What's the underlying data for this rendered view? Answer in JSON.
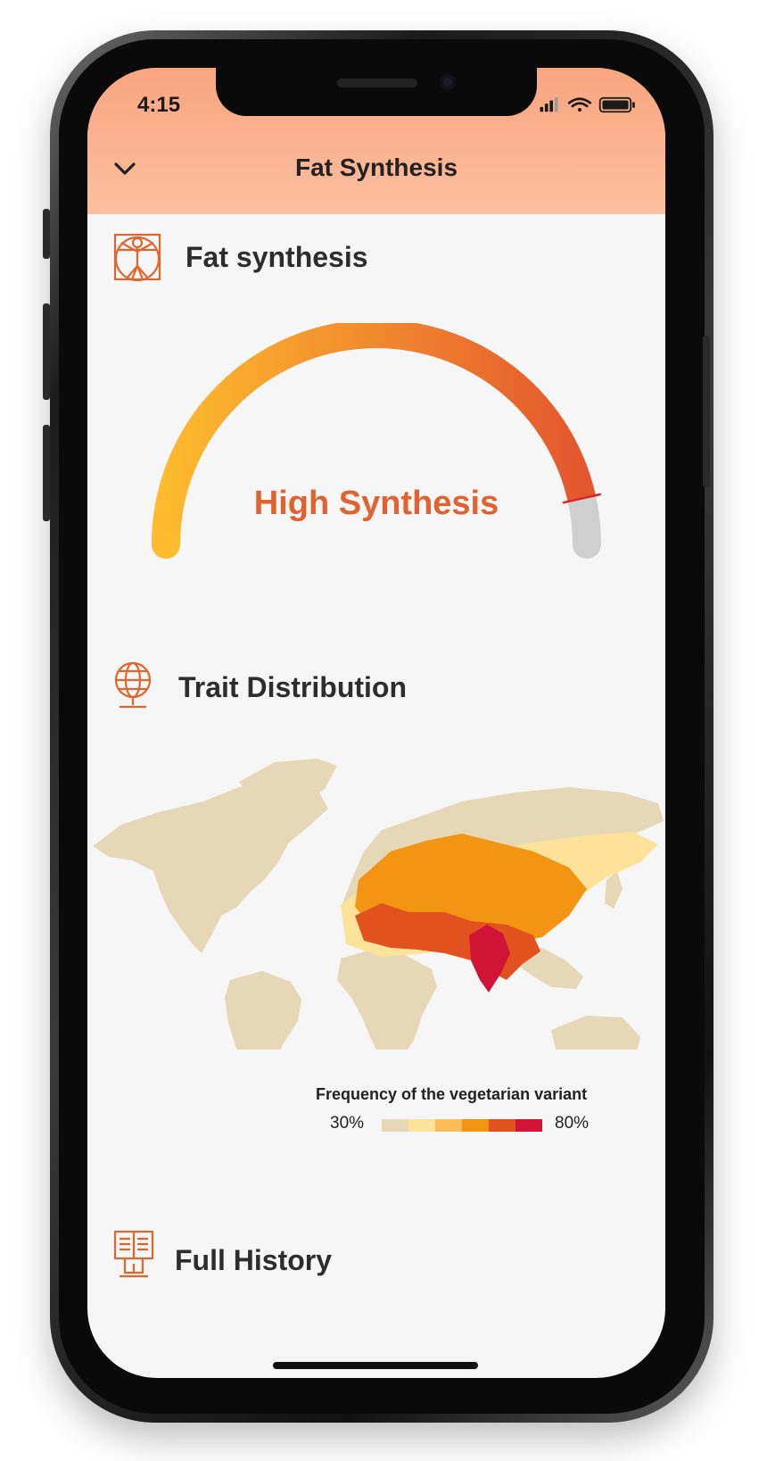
{
  "status_bar": {
    "time": "4:15"
  },
  "header": {
    "title": "Fat Synthesis",
    "back_icon": "chevron-down-icon"
  },
  "sections": {
    "synthesis": {
      "title": "Fat synthesis",
      "icon": "vitruvian-man-icon"
    },
    "distribution": {
      "title": "Trait Distribution",
      "icon": "globe-icon"
    },
    "history": {
      "title": "Full History",
      "icon": "book-stand-icon"
    }
  },
  "gauge": {
    "label": "High Synthesis",
    "level": 0.93,
    "colors": {
      "start": "#fdbb2d",
      "end": "#e4572e",
      "track": "#cfcfcf",
      "label": "#e0622f"
    }
  },
  "map": {
    "land_color": "#e6d8b6",
    "legend": {
      "title": "Frequency of the vegetarian variant",
      "min_label": "30%",
      "max_label": "80%",
      "colors": [
        "#e6d8b6",
        "#fde39a",
        "#fbbd58",
        "#f39413",
        "#e2521f",
        "#cf1436"
      ]
    }
  }
}
